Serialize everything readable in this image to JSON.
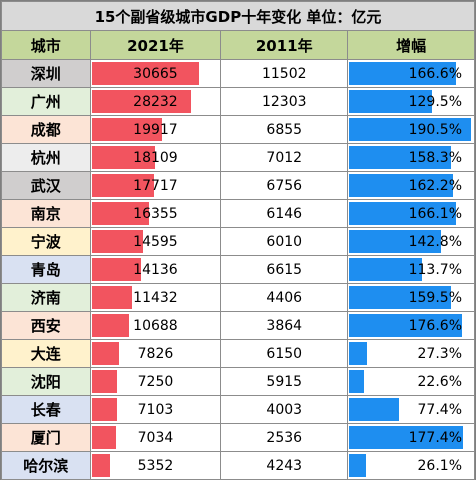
{
  "title": "15个副省级城市GDP十年变化   单位：亿元",
  "headers": [
    "城市",
    "2021年",
    "2011年",
    "增幅"
  ],
  "colors": {
    "gdp_bar": "#f2545f",
    "growth_bar": "#1e8ef0"
  },
  "rows": [
    {
      "city": "深圳",
      "gdp2021": "30665",
      "gdp2011": "11502",
      "growth": "166.6%",
      "bg": "#d0cece"
    },
    {
      "city": "广州",
      "gdp2021": "28232",
      "gdp2011": "12303",
      "growth": "129.5%",
      "bg": "#e2efda"
    },
    {
      "city": "成都",
      "gdp2021": "19917",
      "gdp2011": "6855",
      "growth": "190.5%",
      "bg": "#fce4d6"
    },
    {
      "city": "杭州",
      "gdp2021": "18109",
      "gdp2011": "7012",
      "growth": "158.3%",
      "bg": "#ededed"
    },
    {
      "city": "武汉",
      "gdp2021": "17717",
      "gdp2011": "6756",
      "growth": "162.2%",
      "bg": "#d0cece"
    },
    {
      "city": "南京",
      "gdp2021": "16355",
      "gdp2011": "6146",
      "growth": "166.1%",
      "bg": "#fce4d6"
    },
    {
      "city": "宁波",
      "gdp2021": "14595",
      "gdp2011": "6010",
      "growth": "142.8%",
      "bg": "#fff2cc"
    },
    {
      "city": "青岛",
      "gdp2021": "14136",
      "gdp2011": "6615",
      "growth": "113.7%",
      "bg": "#d9e1f2"
    },
    {
      "city": "济南",
      "gdp2021": "11432",
      "gdp2011": "4406",
      "growth": "159.5%",
      "bg": "#e2efda"
    },
    {
      "city": "西安",
      "gdp2021": "10688",
      "gdp2011": "3864",
      "growth": "176.6%",
      "bg": "#fce4d6"
    },
    {
      "city": "大连",
      "gdp2021": "7826",
      "gdp2011": "6150",
      "growth": "27.3%",
      "bg": "#fff2cc"
    },
    {
      "city": "沈阳",
      "gdp2021": "7250",
      "gdp2011": "5915",
      "growth": "22.6%",
      "bg": "#e2efda"
    },
    {
      "city": "长春",
      "gdp2021": "7103",
      "gdp2011": "4003",
      "growth": "77.4%",
      "bg": "#d9e1f2"
    },
    {
      "city": "厦门",
      "gdp2021": "7034",
      "gdp2011": "2536",
      "growth": "177.4%",
      "bg": "#fce4d6"
    },
    {
      "city": "哈尔滨",
      "gdp2021": "5352",
      "gdp2011": "4243",
      "growth": "26.1%",
      "bg": "#d9e1f2"
    }
  ]
}
